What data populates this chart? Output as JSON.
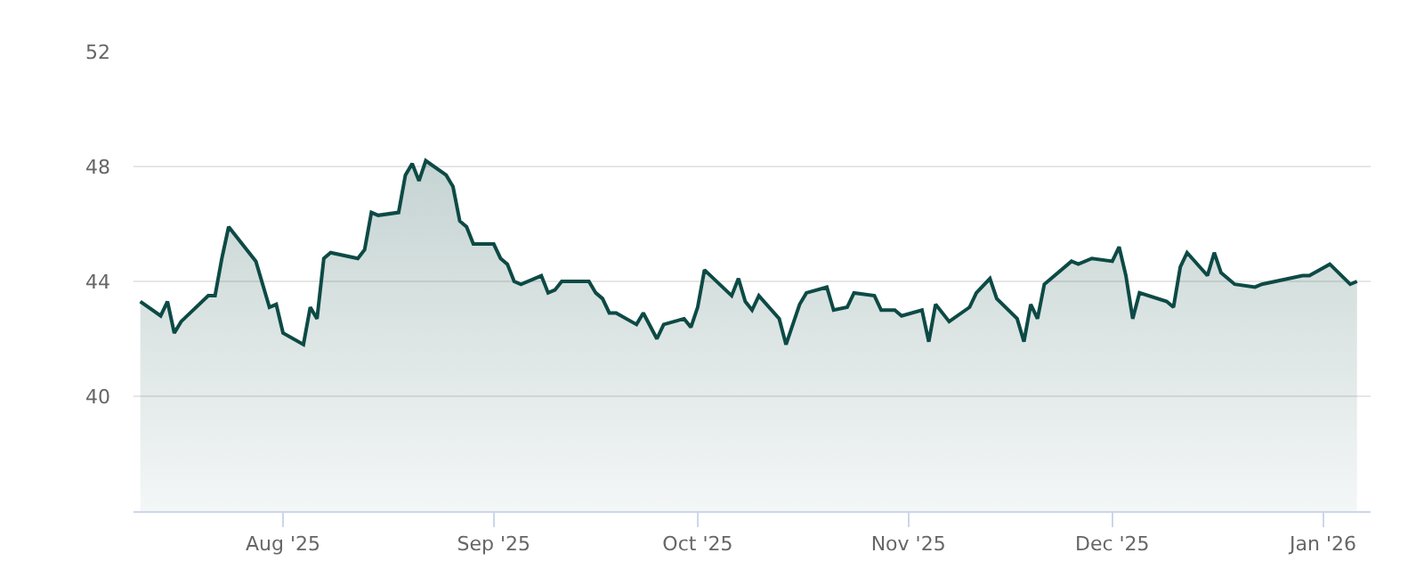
{
  "chart_data": {
    "type": "area",
    "x": [
      "2025-07-11",
      "2025-07-14",
      "2025-07-15",
      "2025-07-16",
      "2025-07-17",
      "2025-07-21",
      "2025-07-22",
      "2025-07-23",
      "2025-07-24",
      "2025-07-28",
      "2025-07-30",
      "2025-07-31",
      "2025-08-01",
      "2025-08-04",
      "2025-08-05",
      "2025-08-06",
      "2025-08-07",
      "2025-08-08",
      "2025-08-12",
      "2025-08-13",
      "2025-08-14",
      "2025-08-15",
      "2025-08-18",
      "2025-08-19",
      "2025-08-20",
      "2025-08-21",
      "2025-08-22",
      "2025-08-25",
      "2025-08-26",
      "2025-08-27",
      "2025-08-28",
      "2025-08-29",
      "2025-09-01",
      "2025-09-02",
      "2025-09-03",
      "2025-09-04",
      "2025-09-05",
      "2025-09-08",
      "2025-09-09",
      "2025-09-10",
      "2025-09-11",
      "2025-09-15",
      "2025-09-16",
      "2025-09-17",
      "2025-09-18",
      "2025-09-19",
      "2025-09-22",
      "2025-09-23",
      "2025-09-25",
      "2025-09-26",
      "2025-09-29",
      "2025-09-30",
      "2025-10-01",
      "2025-10-02",
      "2025-10-06",
      "2025-10-07",
      "2025-10-08",
      "2025-10-09",
      "2025-10-10",
      "2025-10-13",
      "2025-10-14",
      "2025-10-16",
      "2025-10-17",
      "2025-10-20",
      "2025-10-21",
      "2025-10-23",
      "2025-10-24",
      "2025-10-27",
      "2025-10-28",
      "2025-10-30",
      "2025-10-31",
      "2025-11-03",
      "2025-11-04",
      "2025-11-05",
      "2025-11-07",
      "2025-11-10",
      "2025-11-11",
      "2025-11-13",
      "2025-11-14",
      "2025-11-17",
      "2025-11-18",
      "2025-11-19",
      "2025-11-20",
      "2025-11-21",
      "2025-11-25",
      "2025-11-26",
      "2025-11-28",
      "2025-12-01",
      "2025-12-02",
      "2025-12-03",
      "2025-12-04",
      "2025-12-05",
      "2025-12-09",
      "2025-12-10",
      "2025-12-11",
      "2025-12-12",
      "2025-12-15",
      "2025-12-16",
      "2025-12-17",
      "2025-12-19",
      "2025-12-22",
      "2025-12-23",
      "2025-12-29",
      "2025-12-30",
      "2026-01-02",
      "2026-01-05",
      "2026-01-06"
    ],
    "series": [
      {
        "color": "#0d4a45",
        "values": [
          43.3,
          42.8,
          43.3,
          42.2,
          42.6,
          43.5,
          43.5,
          44.8,
          45.9,
          44.7,
          43.1,
          43.2,
          42.2,
          41.8,
          43.1,
          42.7,
          44.8,
          45.0,
          44.8,
          45.1,
          46.4,
          46.3,
          46.4,
          47.7,
          48.1,
          47.5,
          48.2,
          47.7,
          47.3,
          46.1,
          45.9,
          45.3,
          45.3,
          44.8,
          44.6,
          44.0,
          43.9,
          44.2,
          43.6,
          43.7,
          44.0,
          44.0,
          43.6,
          43.4,
          42.9,
          42.9,
          42.5,
          42.9,
          42.0,
          42.5,
          42.7,
          42.4,
          43.1,
          44.4,
          43.5,
          44.1,
          43.3,
          43.0,
          43.5,
          42.7,
          41.8,
          43.2,
          43.6,
          43.8,
          43.0,
          43.1,
          43.6,
          43.5,
          43.0,
          43.0,
          42.8,
          43.0,
          41.9,
          43.2,
          42.6,
          43.1,
          43.6,
          44.1,
          43.4,
          42.7,
          41.9,
          43.2,
          42.7,
          43.9,
          44.7,
          44.6,
          44.8,
          44.7,
          45.2,
          44.2,
          42.7,
          43.6,
          43.3,
          43.1,
          44.5,
          45.0,
          44.2,
          45.0,
          44.3,
          43.9,
          43.8,
          43.9,
          44.2,
          44.2,
          44.6,
          43.9,
          44.0
        ]
      }
    ],
    "xlim": [
      "2025-07-10",
      "2026-01-08"
    ],
    "xticks": [
      {
        "value": "2025-08-01",
        "label": "Aug '25"
      },
      {
        "value": "2025-09-01",
        "label": "Sep '25"
      },
      {
        "value": "2025-10-01",
        "label": "Oct '25"
      },
      {
        "value": "2025-11-01",
        "label": "Nov '25"
      },
      {
        "value": "2025-12-01",
        "label": "Dec '25"
      },
      {
        "value": "2026-01-01",
        "label": "Jan '26"
      }
    ],
    "ylim": [
      36,
      52
    ],
    "yticks": [
      40,
      44,
      48,
      52
    ],
    "grid": "y",
    "legend": false,
    "marker": "none",
    "line_style": "solid"
  }
}
